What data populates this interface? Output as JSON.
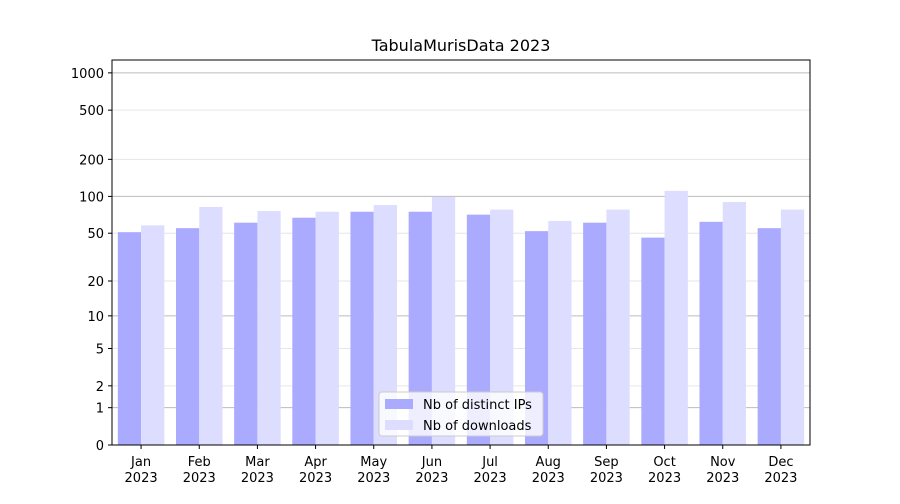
{
  "chart_data": {
    "type": "bar",
    "title": "TabulaMurisData 2023",
    "categories": [
      "Jan\n2023",
      "Feb\n2023",
      "Mar\n2023",
      "Apr\n2023",
      "May\n2023",
      "Jun\n2023",
      "Jul\n2023",
      "Aug\n2023",
      "Sep\n2023",
      "Oct\n2023",
      "Nov\n2023",
      "Dec\n2023"
    ],
    "series": [
      {
        "name": "Nb of distinct IPs",
        "color": "#aaaaff",
        "values": [
          51,
          55,
          61,
          67,
          75,
          75,
          71,
          52,
          61,
          46,
          62,
          55
        ]
      },
      {
        "name": "Nb of downloads",
        "color": "#ddddff",
        "values": [
          58,
          82,
          76,
          75,
          85,
          99,
          78,
          63,
          78,
          111,
          90,
          78
        ]
      }
    ],
    "yscale": "log1p",
    "ylim": [
      0,
      1270
    ],
    "yticks": [
      0,
      1,
      2,
      5,
      10,
      20,
      50,
      100,
      200,
      500,
      1000
    ],
    "grid": true,
    "legend": "lower center"
  }
}
